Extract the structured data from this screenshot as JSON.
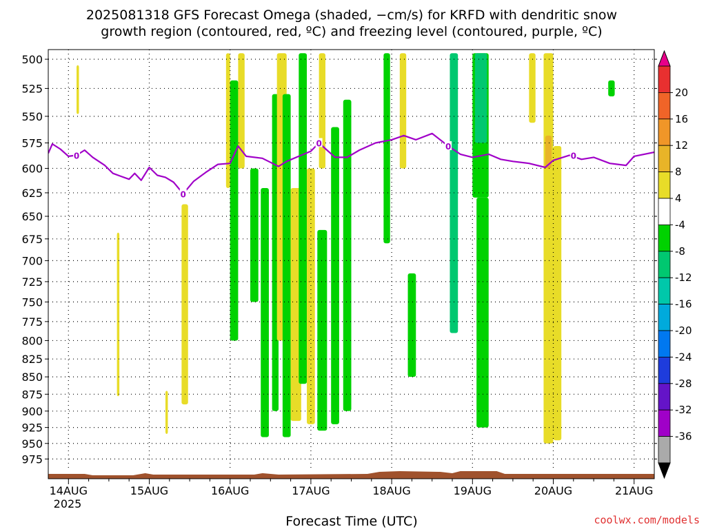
{
  "title_line1": "2025081318 GFS Forecast Omega (shaded, −cm/s) for KRFD with dendritic snow",
  "title_line2": "growth region (contoured, red, ºC) and freezing level (contoured, purple, ºC)",
  "credit": "coolwx.com/models",
  "chart_data": {
    "type": "heatmap",
    "title": "2025081318 GFS Forecast Omega (shaded, −cm/s) for KRFD with dendritic snow growth region (contoured, red, ºC) and freezing level (contoured, purple, ºC)",
    "xlabel": "Forecast Time (UTC)",
    "ylabel": "",
    "x_tick_labels": [
      "14AUG",
      "15AUG",
      "16AUG",
      "17AUG",
      "18AUG",
      "19AUG",
      "20AUG",
      "21AUG"
    ],
    "x_tick_sublabel": "2025",
    "x_range_days": [
      -0.25,
      7.25
    ],
    "y_tick_labels": [
      500,
      525,
      550,
      575,
      600,
      625,
      650,
      675,
      700,
      725,
      750,
      775,
      800,
      825,
      850,
      875,
      900,
      925,
      950,
      975
    ],
    "y_range_hpa": [
      492,
      995
    ],
    "y_scale": "log",
    "grid": true,
    "colorbar": {
      "labels": [
        20,
        16,
        12,
        8,
        4,
        -4,
        -8,
        -12,
        -16,
        -20,
        -24,
        -28,
        -32,
        -36
      ],
      "colors": [
        "#e8008a",
        "#e83030",
        "#f06428",
        "#f09628",
        "#e8b428",
        "#e8dc28",
        "#ffffff",
        "#00d200",
        "#00c870",
        "#00c8aa",
        "#00aadc",
        "#0078f0",
        "#1e3cdc",
        "#6414c8",
        "#a000c8",
        "#aaaaaa",
        "#000000"
      ]
    },
    "freezing_level_label": "0",
    "freezing_level_hpa": [
      [
        -0.25,
        585
      ],
      [
        -0.2,
        576
      ],
      [
        -0.1,
        581
      ],
      [
        0.0,
        588
      ],
      [
        0.1,
        587
      ],
      [
        0.2,
        582
      ],
      [
        0.3,
        589
      ],
      [
        0.45,
        597
      ],
      [
        0.55,
        605
      ],
      [
        0.65,
        608
      ],
      [
        0.75,
        611
      ],
      [
        0.82,
        605
      ],
      [
        0.9,
        612
      ],
      [
        1.0,
        599
      ],
      [
        1.1,
        607
      ],
      [
        1.2,
        609
      ],
      [
        1.3,
        614
      ],
      [
        1.42,
        626
      ],
      [
        1.55,
        613
      ],
      [
        1.7,
        604
      ],
      [
        1.85,
        596
      ],
      [
        2.0,
        595
      ],
      [
        2.1,
        578
      ],
      [
        2.2,
        588
      ],
      [
        2.4,
        590
      ],
      [
        2.5,
        594
      ],
      [
        2.6,
        598
      ],
      [
        2.7,
        593
      ],
      [
        2.85,
        588
      ],
      [
        3.0,
        583
      ],
      [
        3.1,
        575
      ],
      [
        3.2,
        582
      ],
      [
        3.3,
        589
      ],
      [
        3.45,
        589
      ],
      [
        3.6,
        582
      ],
      [
        3.8,
        575
      ],
      [
        4.0,
        572
      ],
      [
        4.15,
        568
      ],
      [
        4.3,
        572
      ],
      [
        4.5,
        566
      ],
      [
        4.7,
        578
      ],
      [
        4.85,
        586
      ],
      [
        5.0,
        589
      ],
      [
        5.2,
        586
      ],
      [
        5.35,
        591
      ],
      [
        5.5,
        593
      ],
      [
        5.7,
        595
      ],
      [
        5.9,
        599
      ],
      [
        6.0,
        592
      ],
      [
        6.2,
        587
      ],
      [
        6.35,
        591
      ],
      [
        6.5,
        589
      ],
      [
        6.7,
        595
      ],
      [
        6.9,
        597
      ],
      [
        7.0,
        588
      ],
      [
        7.25,
        584
      ]
    ],
    "omega_regions": [
      {
        "cat": "4",
        "t": [
          0.1,
          0.13
        ],
        "p": [
          505,
          548
        ]
      },
      {
        "cat": "4",
        "t": [
          0.6,
          0.63
        ],
        "p": [
          668,
          878
        ]
      },
      {
        "cat": "4",
        "t": [
          1.2,
          1.23
        ],
        "p": [
          870,
          935
        ]
      },
      {
        "cat": "4",
        "t": [
          1.4,
          1.48
        ],
        "p": [
          637,
          890
        ]
      },
      {
        "cat": "4",
        "t": [
          1.95,
          2.0
        ],
        "p": [
          495,
          620
        ]
      },
      {
        "cat": "-4",
        "t": [
          2.0,
          2.1
        ],
        "p": [
          518,
          800
        ]
      },
      {
        "cat": "4",
        "t": [
          2.1,
          2.18
        ],
        "p": [
          495,
          600
        ]
      },
      {
        "cat": "-4",
        "t": [
          2.25,
          2.35
        ],
        "p": [
          600,
          750
        ]
      },
      {
        "cat": "-4",
        "t": [
          2.38,
          2.48
        ],
        "p": [
          620,
          940
        ]
      },
      {
        "cat": "-4",
        "t": [
          2.52,
          2.6
        ],
        "p": [
          530,
          900
        ]
      },
      {
        "cat": "4",
        "t": [
          2.58,
          2.7
        ],
        "p": [
          495,
          800
        ]
      },
      {
        "cat": "-4",
        "t": [
          2.65,
          2.75
        ],
        "p": [
          530,
          940
        ]
      },
      {
        "cat": "4",
        "t": [
          2.75,
          2.88
        ],
        "p": [
          620,
          915
        ]
      },
      {
        "cat": "-4",
        "t": [
          2.85,
          2.95
        ],
        "p": [
          495,
          860
        ]
      },
      {
        "cat": "4",
        "t": [
          2.95,
          3.05
        ],
        "p": [
          600,
          920
        ]
      },
      {
        "cat": "-4",
        "t": [
          3.08,
          3.2
        ],
        "p": [
          665,
          930
        ]
      },
      {
        "cat": "4",
        "t": [
          3.1,
          3.18
        ],
        "p": [
          495,
          600
        ]
      },
      {
        "cat": "-4",
        "t": [
          3.25,
          3.35
        ],
        "p": [
          560,
          920
        ]
      },
      {
        "cat": "-4",
        "t": [
          3.4,
          3.5
        ],
        "p": [
          535,
          900
        ]
      },
      {
        "cat": "-4",
        "t": [
          3.9,
          3.98
        ],
        "p": [
          495,
          680
        ]
      },
      {
        "cat": "4",
        "t": [
          4.1,
          4.18
        ],
        "p": [
          495,
          600
        ]
      },
      {
        "cat": "-4",
        "t": [
          4.2,
          4.3
        ],
        "p": [
          715,
          850
        ]
      },
      {
        "cat": "-8",
        "t": [
          4.72,
          4.82
        ],
        "p": [
          495,
          790
        ]
      },
      {
        "cat": "-4",
        "t": [
          5.0,
          5.2
        ],
        "p": [
          495,
          630
        ]
      },
      {
        "cat": "-8",
        "t": [
          5.03,
          5.18
        ],
        "p": [
          495,
          575
        ]
      },
      {
        "cat": "-4",
        "t": [
          5.05,
          5.2
        ],
        "p": [
          630,
          925
        ]
      },
      {
        "cat": "4",
        "t": [
          5.7,
          5.78
        ],
        "p": [
          495,
          556
        ]
      },
      {
        "cat": "4",
        "t": [
          5.88,
          6.0
        ],
        "p": [
          495,
          950
        ]
      },
      {
        "cat": "8",
        "t": [
          5.9,
          5.98
        ],
        "p": [
          568,
          600
        ]
      },
      {
        "cat": "4",
        "t": [
          6.0,
          6.1
        ],
        "p": [
          578,
          945
        ]
      },
      {
        "cat": "-4",
        "t": [
          6.68,
          6.76
        ],
        "p": [
          518,
          532
        ]
      }
    ]
  }
}
